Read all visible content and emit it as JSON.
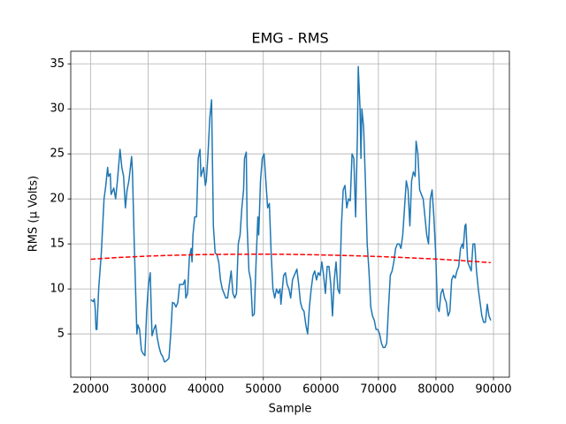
{
  "chart_data": {
    "type": "line",
    "title": "EMG - RMS",
    "x_label": "Sample",
    "y_label": "RMS (μ Volts)",
    "xlim": [
      16535,
      92765
    ],
    "ylim": [
      0.2,
      36.4
    ],
    "xticks": [
      20000,
      30000,
      40000,
      50000,
      60000,
      70000,
      80000,
      90000
    ],
    "yticks": [
      5,
      10,
      15,
      20,
      25,
      30,
      35
    ],
    "grid": true,
    "series": [
      {
        "color": "#1f77b4",
        "linestyle": "solid",
        "x": [
          20000,
          20460,
          20620,
          20770,
          20930,
          21080,
          21390,
          21850,
          22320,
          22630,
          22940,
          23090,
          23400,
          23550,
          24020,
          24330,
          24640,
          25100,
          25410,
          25720,
          26030,
          26330,
          26640,
          27110,
          27260,
          27570,
          28030,
          28190,
          28500,
          28810,
          29120,
          29420,
          29730,
          30040,
          30350,
          30510,
          30660,
          30970,
          31280,
          31590,
          31900,
          32210,
          32510,
          32820,
          33130,
          33600,
          33910,
          34210,
          34520,
          34830,
          35140,
          35450,
          36070,
          36380,
          36530,
          36840,
          37150,
          37460,
          37610,
          37770,
          38080,
          38390,
          38690,
          39000,
          39160,
          39620,
          39930,
          40090,
          40390,
          40700,
          41010,
          41320,
          41630,
          41940,
          42250,
          42560,
          42870,
          43180,
          43480,
          43790,
          44100,
          44410,
          44720,
          45030,
          45340,
          45650,
          45960,
          46270,
          46570,
          46730,
          47040,
          47190,
          47500,
          47810,
          48120,
          48430,
          48740,
          49050,
          49200,
          49510,
          49820,
          50130,
          50440,
          50750,
          51050,
          51360,
          51670,
          51980,
          52290,
          52600,
          52910,
          53060,
          53530,
          53840,
          54140,
          54450,
          54760,
          55070,
          55380,
          55840,
          56150,
          56460,
          56770,
          57080,
          57390,
          57700,
          58010,
          58320,
          58630,
          58930,
          59240,
          59550,
          59860,
          60170,
          60480,
          60790,
          61100,
          61410,
          61720,
          62020,
          62330,
          62640,
          62950,
          63260,
          63570,
          63880,
          64190,
          64500,
          64810,
          65110,
          65420,
          65730,
          66040,
          66350,
          66500,
          66810,
          66970,
          67120,
          67430,
          67740,
          68050,
          68360,
          68670,
          68980,
          69290,
          69590,
          69900,
          70210,
          70520,
          70830,
          71140,
          71450,
          71760,
          72070,
          72380,
          72680,
          72990,
          73300,
          73610,
          73920,
          74230,
          74540,
          74850,
          75160,
          75470,
          75770,
          76080,
          76390,
          76550,
          76860,
          77170,
          77470,
          77780,
          78090,
          78400,
          78710,
          79020,
          79330,
          79640,
          79950,
          80260,
          80560,
          80870,
          81180,
          81490,
          81800,
          82110,
          82420,
          82730,
          83040,
          83350,
          83650,
          83960,
          84270,
          84580,
          84740,
          85040,
          85200,
          85510,
          85820,
          86130,
          86440,
          86740,
          87050,
          87360,
          87670,
          87980,
          88290,
          88600,
          88910,
          89220,
          89530
        ],
        "values": [
          8.8,
          8.6,
          8.9,
          8.0,
          5.5,
          5.5,
          10,
          14,
          20,
          21.5,
          23.5,
          22.5,
          22.8,
          20.5,
          21.2,
          20,
          22,
          25.5,
          23.5,
          22.5,
          19,
          21,
          22,
          24.7,
          23,
          15,
          5,
          6,
          5.5,
          3.2,
          2.8,
          2.6,
          7.5,
          10.5,
          11.8,
          8,
          4.8,
          5.5,
          6,
          4.5,
          3.5,
          2.8,
          2.5,
          1.9,
          2.0,
          2.3,
          5,
          8.5,
          8.4,
          8,
          8.5,
          10.5,
          10.5,
          11,
          9,
          9.5,
          13.5,
          14.5,
          13,
          16,
          18,
          18,
          24.5,
          25.5,
          22.5,
          23.5,
          21.5,
          22,
          25,
          29,
          31,
          17,
          14,
          13.8,
          13,
          11,
          10,
          9.5,
          9,
          9,
          10.5,
          12,
          9.5,
          9,
          9.5,
          15,
          16,
          19,
          21,
          24.5,
          25.2,
          17,
          12,
          11,
          7,
          7.2,
          13,
          18,
          16,
          22,
          24.5,
          25,
          22,
          19,
          19.5,
          14,
          10,
          9,
          10,
          9.5,
          10,
          8.3,
          11.5,
          11.8,
          10.5,
          10,
          9,
          11,
          11.5,
          12.2,
          10.5,
          8.5,
          7.8,
          7.5,
          6,
          5,
          8,
          10,
          11.5,
          12,
          11,
          11.8,
          11.5,
          13,
          11.5,
          9.5,
          12.5,
          12.5,
          10.5,
          7,
          11,
          13,
          10,
          9.5,
          17,
          21,
          21.5,
          19,
          20,
          19.8,
          25,
          24.5,
          18,
          27,
          34.7,
          30,
          24.5,
          30,
          28,
          22,
          15,
          12,
          8,
          7,
          6.5,
          5.5,
          5.5,
          5,
          4,
          3.5,
          3.5,
          4,
          8,
          11.5,
          12,
          13,
          14.5,
          15,
          15,
          14.5,
          16,
          19,
          22,
          21,
          17,
          22,
          23,
          22.5,
          26.4,
          25,
          21,
          20.5,
          20,
          18,
          16,
          15,
          20,
          21,
          18,
          14,
          8,
          7.5,
          9.5,
          10,
          9,
          8.5,
          7,
          7.5,
          11,
          11.5,
          11.2,
          12,
          12.5,
          14.5,
          15,
          14.5,
          17,
          17.2,
          13,
          12.5,
          12,
          15,
          15,
          12,
          10,
          8.5,
          7,
          6.3,
          6.3,
          8.3,
          7,
          6.5
        ]
      },
      {
        "color": "#ff0000",
        "linestyle": "dashed",
        "x": [
          20000,
          25000,
          30000,
          35000,
          40000,
          45000,
          50000,
          55000,
          60000,
          65000,
          70000,
          75000,
          80000,
          85000,
          89500
        ],
        "values": [
          13.3,
          13.5,
          13.65,
          13.75,
          13.82,
          13.85,
          13.86,
          13.84,
          13.78,
          13.7,
          13.6,
          13.47,
          13.32,
          13.13,
          12.92
        ]
      }
    ]
  }
}
